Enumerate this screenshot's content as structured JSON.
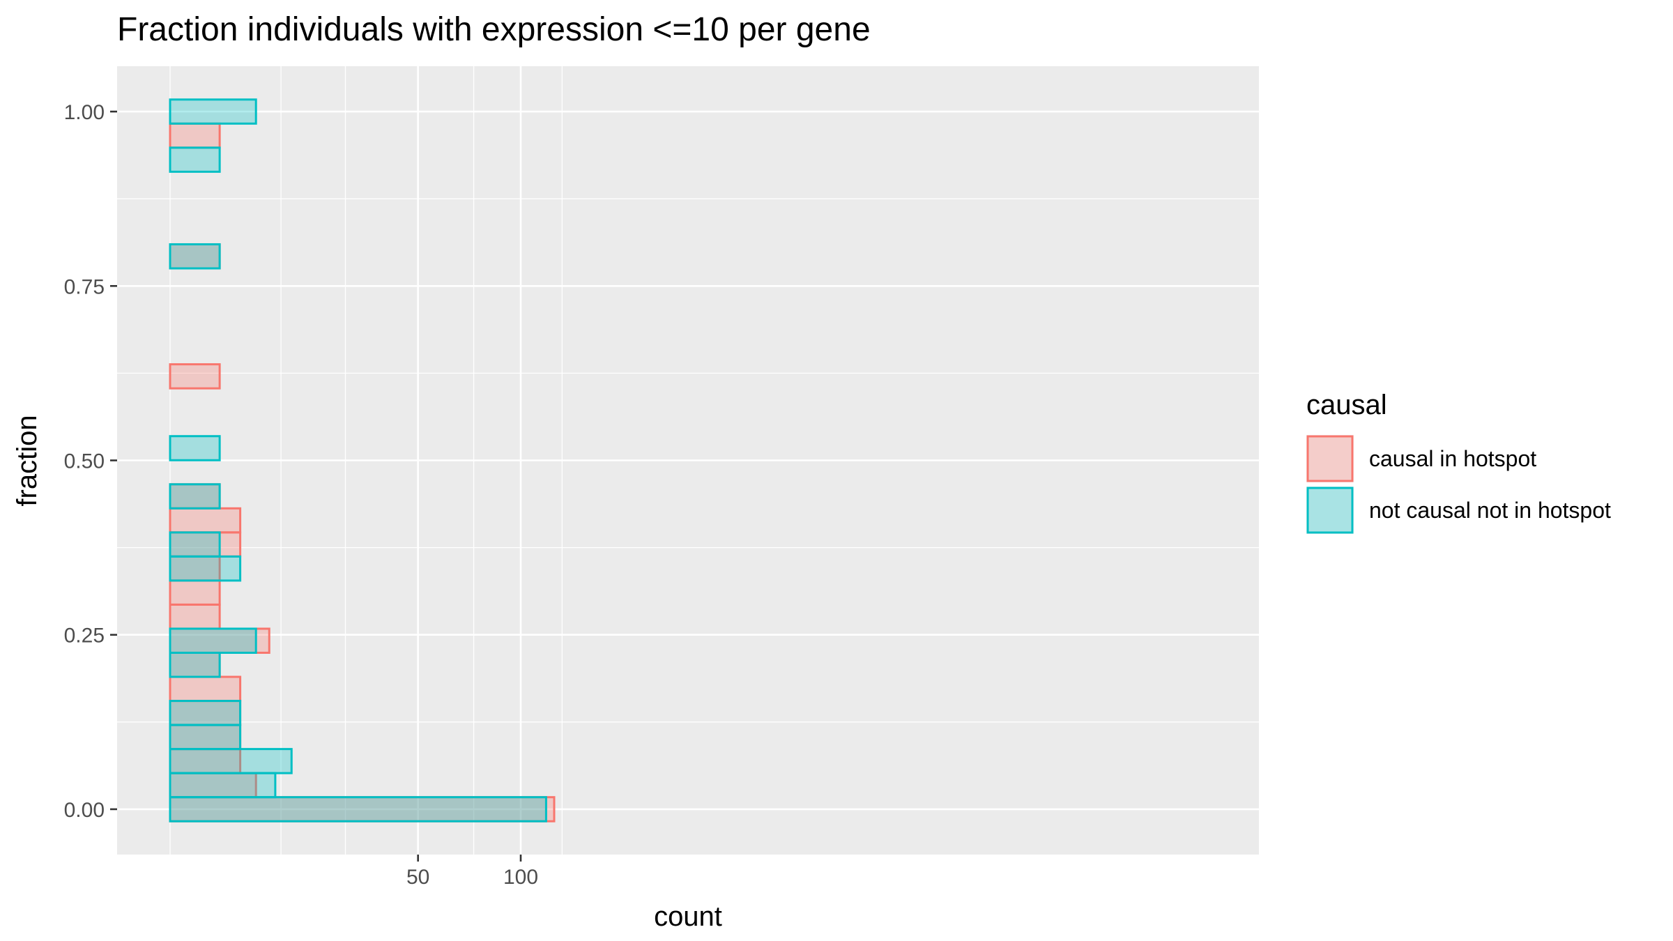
{
  "chart_data": {
    "type": "bar",
    "orientation": "horizontal",
    "title": "Fraction individuals with expression <=10 per gene",
    "xlabel": "count",
    "ylabel": "fraction",
    "x_scale": "sqrt",
    "xlim": [
      0,
      130
    ],
    "ylim": [
      -0.065,
      1.065
    ],
    "x_ticks": [
      {
        "value": 50,
        "label": "50"
      },
      {
        "value": 100,
        "label": "100"
      }
    ],
    "x_minor_gridlines": [
      0,
      10,
      25,
      75,
      125
    ],
    "y_ticks": [
      {
        "value": 0,
        "label": "0.00"
      },
      {
        "value": 0.25,
        "label": "0.25"
      },
      {
        "value": 0.5,
        "label": "0.50"
      },
      {
        "value": 0.75,
        "label": "0.75"
      },
      {
        "value": 1,
        "label": "1.00"
      }
    ],
    "bin_width": 0.0345,
    "grid": true,
    "legend": {
      "title": "causal",
      "position": "right"
    },
    "series": [
      {
        "name": "causal in hotspot",
        "color": "#F8766D",
        "fill": "rgba(248,118,109,0.3)",
        "bins": [
          {
            "y": 0.0,
            "count": 120
          },
          {
            "y": 0.0345,
            "count": 6
          },
          {
            "y": 0.069,
            "count": 4
          },
          {
            "y": 0.1035,
            "count": 4
          },
          {
            "y": 0.138,
            "count": 4
          },
          {
            "y": 0.1725,
            "count": 4
          },
          {
            "y": 0.207,
            "count": 2
          },
          {
            "y": 0.2415,
            "count": 8
          },
          {
            "y": 0.276,
            "count": 2
          },
          {
            "y": 0.3105,
            "count": 2
          },
          {
            "y": 0.345,
            "count": 2
          },
          {
            "y": 0.3795,
            "count": 4
          },
          {
            "y": 0.414,
            "count": 4
          },
          {
            "y": 0.4485,
            "count": 2
          },
          {
            "y": 0.6205,
            "count": 2
          },
          {
            "y": 0.7925,
            "count": 2
          },
          {
            "y": 0.9655,
            "count": 2
          }
        ]
      },
      {
        "name": "not causal not in hotspot",
        "color": "#00BFC4",
        "fill": "rgba(0,191,196,0.3)",
        "bins": [
          {
            "y": 0.0,
            "count": 115
          },
          {
            "y": 0.0345,
            "count": 9
          },
          {
            "y": 0.069,
            "count": 12
          },
          {
            "y": 0.1035,
            "count": 4
          },
          {
            "y": 0.138,
            "count": 4
          },
          {
            "y": 0.207,
            "count": 2
          },
          {
            "y": 0.2415,
            "count": 6
          },
          {
            "y": 0.345,
            "count": 4
          },
          {
            "y": 0.3795,
            "count": 2
          },
          {
            "y": 0.4485,
            "count": 2
          },
          {
            "y": 0.5175,
            "count": 2
          },
          {
            "y": 0.7925,
            "count": 2
          },
          {
            "y": 0.931,
            "count": 2
          },
          {
            "y": 1.0,
            "count": 6
          }
        ]
      }
    ]
  }
}
